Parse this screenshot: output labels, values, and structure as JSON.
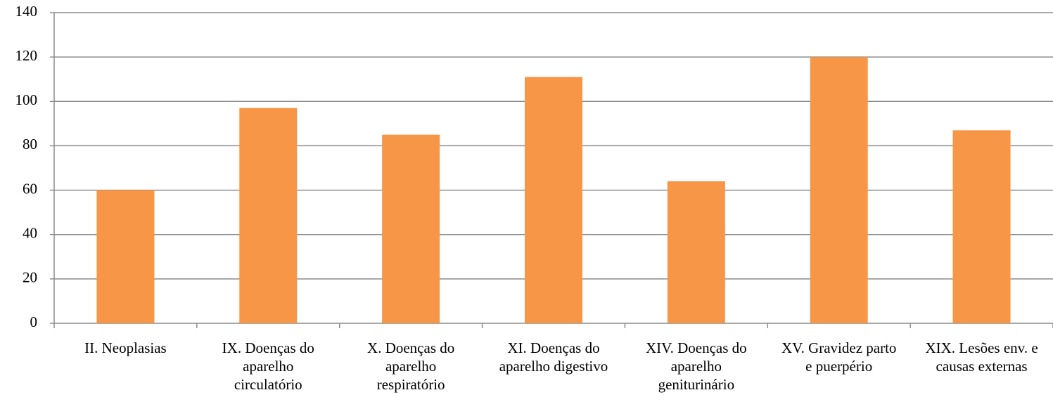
{
  "chart_data": {
    "type": "bar",
    "categories": [
      "II. Neoplasias",
      "IX. Doenças do aparelho circulatório",
      "X. Doenças do aparelho respiratório",
      "XI. Doenças do aparelho digestivo",
      "XIV. Doenças do aparelho geniturinário",
      "XV. Gravidez parto e puerpério",
      "XIX. Lesões env. e causas externas"
    ],
    "values": [
      60,
      97,
      85,
      111,
      64,
      120,
      87
    ],
    "color": "#f79646",
    "ylim": [
      0,
      140
    ],
    "yticks": [
      0,
      20,
      40,
      60,
      80,
      100,
      120,
      140
    ],
    "grid": true
  }
}
